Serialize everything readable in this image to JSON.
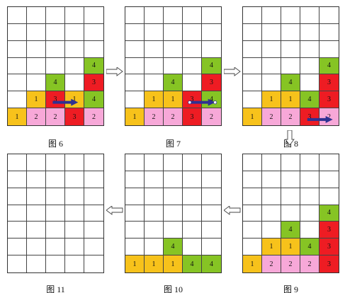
{
  "colors": {
    "1": "#f7c21b",
    "2": "#f7a8d8",
    "3": "#ee1c23",
    "4": "#86c424",
    "move_arrow": "#2e3192"
  },
  "panels": [
    {
      "id": "p6",
      "caption": "图 6",
      "cells": [
        {
          "r": 3,
          "c": 4,
          "v": "4"
        },
        {
          "r": 4,
          "c": 2,
          "v": "4"
        },
        {
          "r": 4,
          "c": 4,
          "v": "3"
        },
        {
          "r": 5,
          "c": 1,
          "v": "1"
        },
        {
          "r": 5,
          "c": 2,
          "v": "3"
        },
        {
          "r": 5,
          "c": 3,
          "v": "1"
        },
        {
          "r": 5,
          "c": 4,
          "v": "4"
        },
        {
          "r": 6,
          "c": 0,
          "v": "1"
        },
        {
          "r": 6,
          "c": 1,
          "v": "2"
        },
        {
          "r": 6,
          "c": 2,
          "v": "2"
        },
        {
          "r": 6,
          "c": 3,
          "v": "3"
        },
        {
          "r": 6,
          "c": 4,
          "v": "2"
        }
      ],
      "move": {
        "r": 5,
        "from_c": 2,
        "to_c": 3,
        "style": "plain"
      }
    },
    {
      "id": "p7",
      "caption": "图 7",
      "cells": [
        {
          "r": 3,
          "c": 4,
          "v": "4"
        },
        {
          "r": 4,
          "c": 2,
          "v": "4"
        },
        {
          "r": 4,
          "c": 4,
          "v": "3"
        },
        {
          "r": 5,
          "c": 1,
          "v": "1"
        },
        {
          "r": 5,
          "c": 2,
          "v": "1"
        },
        {
          "r": 5,
          "c": 3,
          "v": "3"
        },
        {
          "r": 5,
          "c": 4,
          "v": "4"
        },
        {
          "r": 6,
          "c": 0,
          "v": "1"
        },
        {
          "r": 6,
          "c": 1,
          "v": "2"
        },
        {
          "r": 6,
          "c": 2,
          "v": "2"
        },
        {
          "r": 6,
          "c": 3,
          "v": "3"
        },
        {
          "r": 6,
          "c": 4,
          "v": "2"
        }
      ],
      "move": {
        "r": 5,
        "from_c": 3,
        "to_c": 4,
        "style": "dotted"
      }
    },
    {
      "id": "p8",
      "caption": "图 8",
      "cells": [
        {
          "r": 3,
          "c": 4,
          "v": "4"
        },
        {
          "r": 4,
          "c": 2,
          "v": "4"
        },
        {
          "r": 4,
          "c": 4,
          "v": "3"
        },
        {
          "r": 5,
          "c": 1,
          "v": "1"
        },
        {
          "r": 5,
          "c": 2,
          "v": "1"
        },
        {
          "r": 5,
          "c": 3,
          "v": "4"
        },
        {
          "r": 5,
          "c": 4,
          "v": "3"
        },
        {
          "r": 6,
          "c": 0,
          "v": "1"
        },
        {
          "r": 6,
          "c": 1,
          "v": "2"
        },
        {
          "r": 6,
          "c": 2,
          "v": "2"
        },
        {
          "r": 6,
          "c": 3,
          "v": "3"
        },
        {
          "r": 6,
          "c": 4,
          "v": "2"
        }
      ],
      "move": {
        "r": 6,
        "from_c": 3,
        "to_c": 4,
        "style": "plain"
      }
    },
    {
      "id": "p9",
      "caption": "图 9",
      "cells": [
        {
          "r": 3,
          "c": 4,
          "v": "4"
        },
        {
          "r": 4,
          "c": 2,
          "v": "4"
        },
        {
          "r": 4,
          "c": 4,
          "v": "3"
        },
        {
          "r": 5,
          "c": 1,
          "v": "1"
        },
        {
          "r": 5,
          "c": 2,
          "v": "1"
        },
        {
          "r": 5,
          "c": 3,
          "v": "4"
        },
        {
          "r": 5,
          "c": 4,
          "v": "3"
        },
        {
          "r": 6,
          "c": 0,
          "v": "1"
        },
        {
          "r": 6,
          "c": 1,
          "v": "2"
        },
        {
          "r": 6,
          "c": 2,
          "v": "2"
        },
        {
          "r": 6,
          "c": 3,
          "v": "2"
        },
        {
          "r": 6,
          "c": 4,
          "v": "3"
        }
      ]
    },
    {
      "id": "p10",
      "caption": "图 10",
      "cells": [
        {
          "r": 5,
          "c": 2,
          "v": "4"
        },
        {
          "r": 6,
          "c": 0,
          "v": "1"
        },
        {
          "r": 6,
          "c": 1,
          "v": "1"
        },
        {
          "r": 6,
          "c": 2,
          "v": "1"
        },
        {
          "r": 6,
          "c": 3,
          "v": "4"
        },
        {
          "r": 6,
          "c": 4,
          "v": "4"
        }
      ]
    },
    {
      "id": "p11",
      "caption": "图 11",
      "cells": []
    }
  ]
}
